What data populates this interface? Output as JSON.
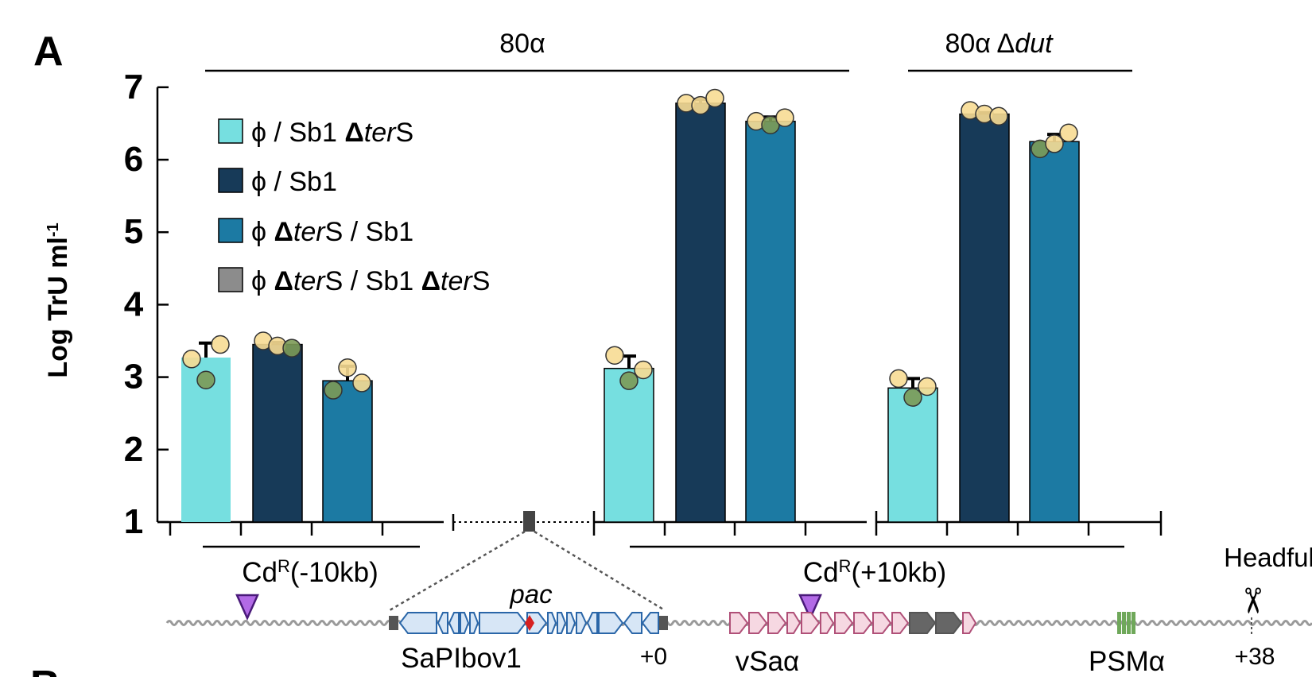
{
  "panel_label": "A",
  "panel_label_next": "B",
  "groups": [
    {
      "label": "80α"
    },
    {
      "label_prefix": "80α ",
      "label_delta": "Δ",
      "label_gene": "dut"
    }
  ],
  "colors": {
    "phi_sb1_ters": "#76dfe0",
    "phi_sb1": "#173a58",
    "phi_ters_sb1": "#1c7aa3",
    "phi_ters_sb1_ters": "#8c8c8c",
    "dot_yellow": "#f7dc94",
    "dot_green": "#7c9a56",
    "sapi": "#d7e6f6",
    "sapi_stroke": "#2a66a8",
    "vsa": "#f6d8e2",
    "vsa_stroke": "#b05078",
    "psm": "#6fa85a",
    "triangle": "#b26ae6",
    "pac": "#d62020"
  },
  "chart_data": {
    "type": "bar",
    "ylabel": "Log TrU ml",
    "ylabel_sup": "-1",
    "ylim": [
      1,
      7
    ],
    "yticks": [
      "1",
      "2",
      "3",
      "4",
      "5",
      "6",
      "7"
    ],
    "legend_position": "top-left",
    "series": [
      {
        "key": "phi_sb1_ters",
        "label_parts": [
          {
            "t": "ϕ  / Sb1 "
          },
          {
            "t": "Δ",
            "b": true
          },
          {
            "t": "ter",
            "i": true
          },
          {
            "t": "S"
          }
        ]
      },
      {
        "key": "phi_sb1",
        "label_parts": [
          {
            "t": "ϕ  / Sb1"
          }
        ]
      },
      {
        "key": "phi_ters_sb1",
        "label_parts": [
          {
            "t": "ϕ  "
          },
          {
            "t": "Δ",
            "b": true
          },
          {
            "t": "ter",
            "i": true
          },
          {
            "t": "S / Sb1"
          }
        ]
      },
      {
        "key": "phi_ters_sb1_ters",
        "label_parts": [
          {
            "t": "ϕ  "
          },
          {
            "t": "Δ",
            "b": true
          },
          {
            "t": "ter",
            "i": true
          },
          {
            "t": "S / Sb1 "
          },
          {
            "t": "Δ",
            "b": true
          },
          {
            "t": "ter",
            "i": true
          },
          {
            "t": "S"
          }
        ]
      }
    ],
    "bars": [
      {
        "series": "phi_sb1_ters",
        "value": 3.27,
        "error": 0.2,
        "points": [
          3.25,
          2.96,
          3.45
        ]
      },
      {
        "series": "phi_sb1",
        "value": 3.45,
        "error": 0.03,
        "points": [
          3.5,
          3.43,
          3.4
        ]
      },
      {
        "series": "phi_ters_sb1",
        "value": 2.95,
        "error": 0.2,
        "points": [
          2.82,
          3.13,
          2.92
        ]
      },
      {
        "series": "phi_sb1_ters",
        "value": 3.12,
        "error": 0.17,
        "points": [
          3.3,
          2.95,
          3.1
        ]
      },
      {
        "series": "phi_sb1",
        "value": 6.78,
        "error": 0.05,
        "points": [
          6.78,
          6.75,
          6.85
        ]
      },
      {
        "series": "phi_ters_sb1",
        "value": 6.53,
        "error": 0.06,
        "points": [
          6.53,
          6.48,
          6.58
        ]
      },
      {
        "series": "phi_sb1_ters",
        "value": 2.85,
        "error": 0.13,
        "points": [
          2.98,
          2.72,
          2.87
        ]
      },
      {
        "series": "phi_sb1",
        "value": 6.63,
        "error": 0.02,
        "points": [
          6.68,
          6.63,
          6.6
        ]
      },
      {
        "series": "phi_ters_sb1",
        "value": 6.25,
        "error": 0.1,
        "points": [
          6.15,
          6.22,
          6.37
        ]
      }
    ]
  },
  "map": {
    "cdr_left_prefix": "Cd",
    "cdr_left_sup": "R",
    "cdr_left_suffix": "(-10kb)",
    "cdr_right_prefix": "Cd",
    "cdr_right_sup": "R",
    "cdr_right_suffix": "(+10kb)",
    "pac": "pac",
    "sapibov1": "SaPIbov1",
    "plus0": "+0",
    "vsa": "vSaα",
    "psm": "PSMα",
    "headful": "Headful",
    "plus38": "+38",
    "scissors": "✂"
  }
}
